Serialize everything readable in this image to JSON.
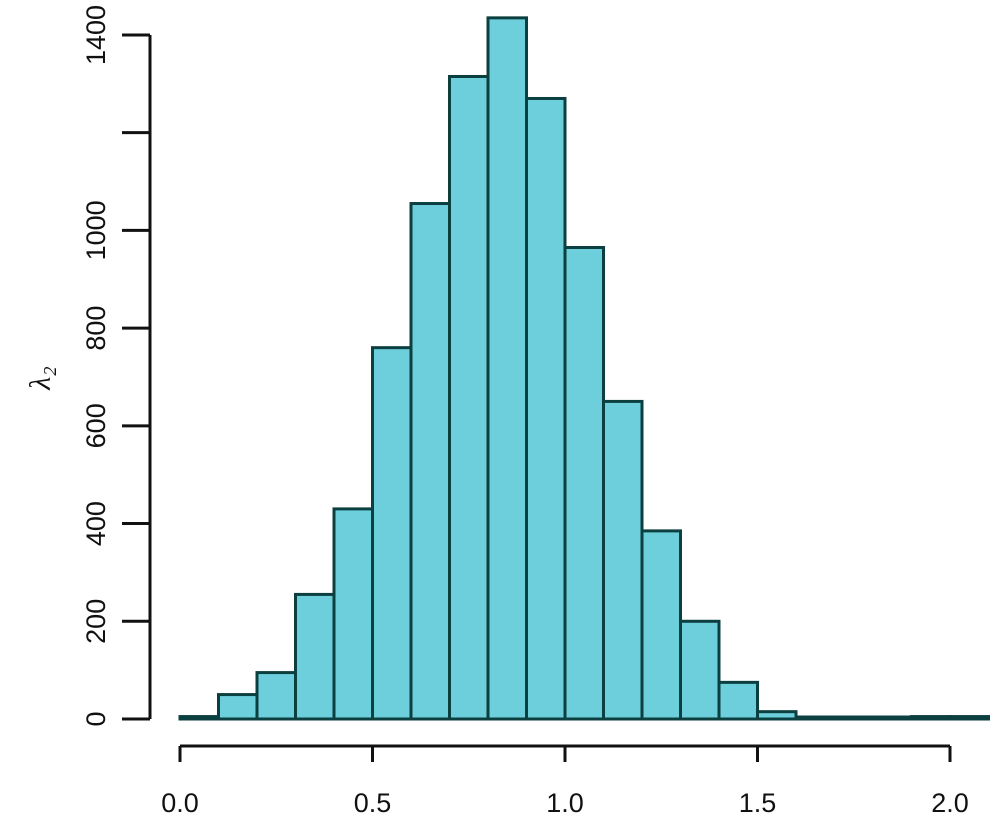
{
  "chart_data": {
    "type": "bar",
    "title": "",
    "xlabel": "",
    "ylabel": "λ₂",
    "bin_edges": [
      0.0,
      0.1,
      0.2,
      0.3,
      0.4,
      0.5,
      0.6,
      0.7,
      0.8,
      0.9,
      1.0,
      1.1,
      1.2,
      1.3,
      1.4,
      1.5,
      1.6,
      1.7,
      1.8,
      1.9,
      2.0,
      2.1
    ],
    "values": [
      5,
      50,
      95,
      255,
      430,
      760,
      1055,
      1315,
      1435,
      1270,
      965,
      650,
      385,
      200,
      75,
      15,
      3,
      2,
      2,
      5,
      5
    ],
    "xlim": [
      0,
      2.1
    ],
    "ylim": [
      0,
      1400
    ],
    "x_ticks": [
      "0.0",
      "0.5",
      "1.0",
      "1.5",
      "2.0"
    ],
    "x_tick_values": [
      0.0,
      0.5,
      1.0,
      1.5,
      2.0
    ],
    "y_ticks": [
      "0",
      "200",
      "400",
      "600",
      "800",
      "1000",
      "1400"
    ],
    "y_tick_values": [
      0,
      200,
      400,
      600,
      800,
      1000,
      1400
    ],
    "y_tick_marks": [
      0,
      200,
      400,
      600,
      800,
      1000,
      1200,
      1400
    ],
    "bar_color": "#6dcfdc",
    "bar_edge_color": "#0c3f3f",
    "grid": false,
    "legend": "none"
  }
}
